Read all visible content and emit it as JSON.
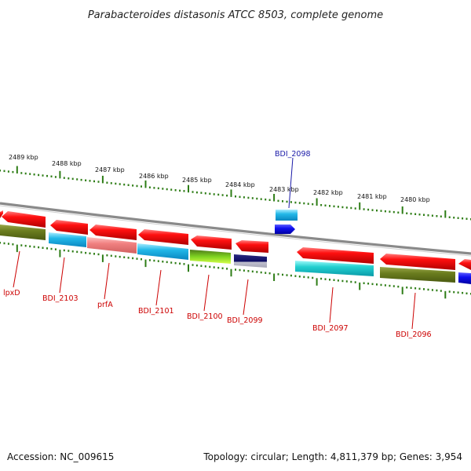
{
  "title": "Parabacteroides distasonis ATCC 8503, complete genome",
  "footer": {
    "accession": "Accession: NC_009615",
    "summary": "Topology: circular; Length: 4,811,379 bp; Genes: 3,954"
  },
  "colors": {
    "backbone": "#808080",
    "tick": "#2e7d16",
    "label_red": "#cc0000",
    "label_blue": "#1a1aa8"
  },
  "scale_labels": [
    "2489 kbp",
    "2488 kbp",
    "2487 kbp",
    "2486 kbp",
    "2485 kbp",
    "2484 kbp",
    "2483 kbp",
    "2482 kbp",
    "2481 kbp",
    "2480 kbp"
  ],
  "gene_labels": [
    {
      "text": "lpxD",
      "color": "red"
    },
    {
      "text": "BDI_2103",
      "color": "red"
    },
    {
      "text": "prfA",
      "color": "red"
    },
    {
      "text": "BDI_2101",
      "color": "red"
    },
    {
      "text": "BDI_2100",
      "color": "red"
    },
    {
      "text": "BDI_2099",
      "color": "red"
    },
    {
      "text": "BDI_2098",
      "color": "blue"
    },
    {
      "text": "BDI_2097",
      "color": "red"
    },
    {
      "text": "BDI_2096",
      "color": "red"
    }
  ]
}
